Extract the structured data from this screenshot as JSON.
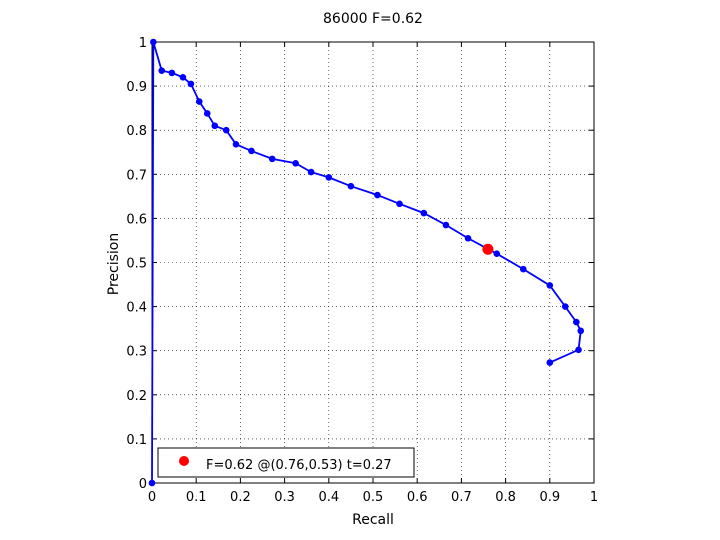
{
  "chart_data": {
    "type": "line",
    "title": "86000 F=0.62",
    "xlabel": "Recall",
    "ylabel": "Precision",
    "xlim": [
      0,
      1
    ],
    "ylim": [
      0,
      1
    ],
    "grid": true,
    "x_ticks": [
      "0",
      "0.1",
      "0.2",
      "0.3",
      "0.4",
      "0.5",
      "0.6",
      "0.7",
      "0.8",
      "0.9",
      "1"
    ],
    "y_ticks": [
      "0",
      "0.1",
      "0.2",
      "0.3",
      "0.4",
      "0.5",
      "0.6",
      "0.7",
      "0.8",
      "0.9",
      "1"
    ],
    "series": [
      {
        "color": "#0000ff",
        "x": [
          0,
          0.003,
          0.022,
          0.045,
          0.07,
          0.088,
          0.107,
          0.125,
          0.142,
          0.168,
          0.19,
          0.225,
          0.272,
          0.325,
          0.36,
          0.4,
          0.45,
          0.51,
          0.56,
          0.615,
          0.665,
          0.715,
          0.78,
          0.84,
          0.9,
          0.935,
          0.96,
          0.97,
          0.965,
          0.9
        ],
        "y": [
          0,
          1.0,
          0.935,
          0.93,
          0.92,
          0.905,
          0.865,
          0.838,
          0.81,
          0.8,
          0.768,
          0.753,
          0.735,
          0.725,
          0.705,
          0.693,
          0.673,
          0.653,
          0.633,
          0.612,
          0.585,
          0.555,
          0.52,
          0.485,
          0.448,
          0.4,
          0.365,
          0.345,
          0.302,
          0.273
        ]
      }
    ],
    "highlight_point": {
      "x": 0.76,
      "y": 0.53,
      "color": "#ff0000"
    },
    "legend": {
      "text": "F=0.62 @(0.76,0.53) t=0.27",
      "position": "bottom-left",
      "marker_color": "#ff0000"
    }
  }
}
